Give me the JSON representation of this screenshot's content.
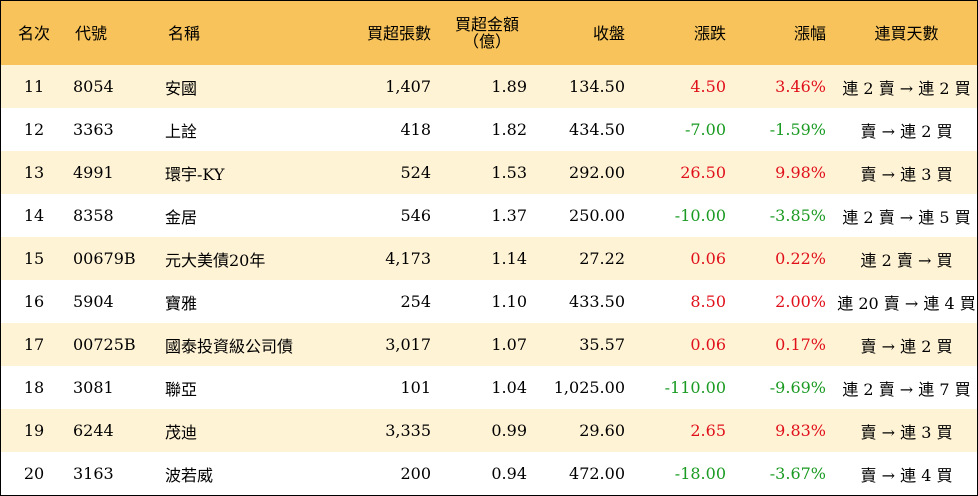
{
  "header": {
    "rank": "名次",
    "code": "代號",
    "name": "名稱",
    "volume": "買超張數",
    "amount_line1": "買超金額",
    "amount_line2": "（億）",
    "close": "收盤",
    "change": "漲跌",
    "pct": "漲幅",
    "streak": "連買天數"
  },
  "colors": {
    "header_bg": "#f7c35a",
    "stripe_bg": "#fff3d6",
    "up": "#e0101a",
    "down": "#1a9a22"
  },
  "rows": [
    {
      "rank": "11",
      "code": "8054",
      "name": "安國",
      "volume": "1,407",
      "amount": "1.89",
      "close": "134.50",
      "change": "4.50",
      "pct": "3.46%",
      "streak": "連 2 賣 → 連 2 買",
      "dir": "up"
    },
    {
      "rank": "12",
      "code": "3363",
      "name": "上詮",
      "volume": "418",
      "amount": "1.82",
      "close": "434.50",
      "change": "-7.00",
      "pct": "-1.59%",
      "streak": "賣 → 連 2 買",
      "dir": "down"
    },
    {
      "rank": "13",
      "code": "4991",
      "name": "環宇-KY",
      "volume": "524",
      "amount": "1.53",
      "close": "292.00",
      "change": "26.50",
      "pct": "9.98%",
      "streak": "賣 → 連 3 買",
      "dir": "up"
    },
    {
      "rank": "14",
      "code": "8358",
      "name": "金居",
      "volume": "546",
      "amount": "1.37",
      "close": "250.00",
      "change": "-10.00",
      "pct": "-3.85%",
      "streak": "連 2 賣 → 連 5 買",
      "dir": "down"
    },
    {
      "rank": "15",
      "code": "00679B",
      "name": "元大美債20年",
      "volume": "4,173",
      "amount": "1.14",
      "close": "27.22",
      "change": "0.06",
      "pct": "0.22%",
      "streak": "連 2 賣 → 買",
      "dir": "up"
    },
    {
      "rank": "16",
      "code": "5904",
      "name": "寶雅",
      "volume": "254",
      "amount": "1.10",
      "close": "433.50",
      "change": "8.50",
      "pct": "2.00%",
      "streak": "連 20 賣 → 連 4 買",
      "dir": "up"
    },
    {
      "rank": "17",
      "code": "00725B",
      "name": "國泰投資級公司債",
      "volume": "3,017",
      "amount": "1.07",
      "close": "35.57",
      "change": "0.06",
      "pct": "0.17%",
      "streak": "賣 → 連 2 買",
      "dir": "up"
    },
    {
      "rank": "18",
      "code": "3081",
      "name": "聯亞",
      "volume": "101",
      "amount": "1.04",
      "close": "1,025.00",
      "change": "-110.00",
      "pct": "-9.69%",
      "streak": "連 2 賣 → 連 7 買",
      "dir": "down"
    },
    {
      "rank": "19",
      "code": "6244",
      "name": "茂迪",
      "volume": "3,335",
      "amount": "0.99",
      "close": "29.60",
      "change": "2.65",
      "pct": "9.83%",
      "streak": "賣 → 連 3 買",
      "dir": "up"
    },
    {
      "rank": "20",
      "code": "3163",
      "name": "波若威",
      "volume": "200",
      "amount": "0.94",
      "close": "472.00",
      "change": "-18.00",
      "pct": "-3.67%",
      "streak": "賣 → 連 4 買",
      "dir": "down"
    }
  ]
}
